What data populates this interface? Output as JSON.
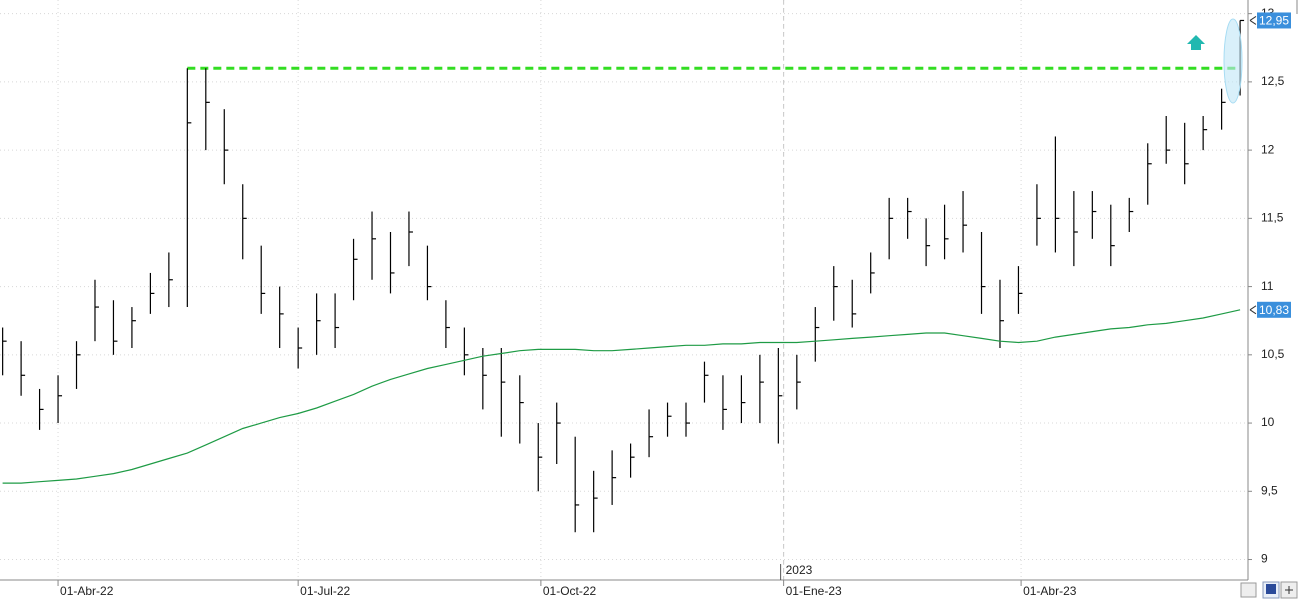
{
  "chart_data": {
    "type": "ohlc",
    "x": [
      "2022-03-11",
      "2022-03-18",
      "2022-03-25",
      "2022-04-01",
      "2022-04-08",
      "2022-04-15",
      "2022-04-22",
      "2022-04-29",
      "2022-05-06",
      "2022-05-13",
      "2022-05-20",
      "2022-05-27",
      "2022-06-03",
      "2022-06-10",
      "2022-06-17",
      "2022-06-24",
      "2022-07-01",
      "2022-07-08",
      "2022-07-15",
      "2022-07-22",
      "2022-07-29",
      "2022-08-05",
      "2022-08-12",
      "2022-08-19",
      "2022-08-26",
      "2022-09-02",
      "2022-09-09",
      "2022-09-16",
      "2022-09-23",
      "2022-09-30",
      "2022-10-07",
      "2022-10-14",
      "2022-10-21",
      "2022-10-28",
      "2022-11-04",
      "2022-11-11",
      "2022-11-18",
      "2022-11-25",
      "2022-12-02",
      "2022-12-09",
      "2022-12-16",
      "2022-12-23",
      "2022-12-30",
      "2023-01-06",
      "2023-01-13",
      "2023-01-20",
      "2023-01-27",
      "2023-02-03",
      "2023-02-10",
      "2023-02-17",
      "2023-02-24",
      "2023-03-03",
      "2023-03-10",
      "2023-03-17",
      "2023-03-24",
      "2023-03-31",
      "2023-04-07",
      "2023-04-14",
      "2023-04-21",
      "2023-04-28",
      "2023-05-05",
      "2023-05-12",
      "2023-05-19",
      "2023-05-26",
      "2023-06-02",
      "2023-06-09",
      "2023-06-16",
      "2023-06-23"
    ],
    "series": [
      {
        "type": "ohlc",
        "color": "#000000",
        "last_value_label": "12,95",
        "high": [
          10.7,
          10.6,
          10.25,
          10.35,
          10.6,
          11.05,
          10.9,
          10.85,
          11.1,
          11.25,
          12.6,
          12.6,
          12.3,
          11.75,
          11.3,
          11.0,
          10.7,
          10.95,
          10.95,
          11.35,
          11.55,
          11.4,
          11.55,
          11.3,
          10.9,
          10.7,
          10.55,
          10.55,
          10.35,
          10.0,
          10.15,
          9.9,
          9.65,
          9.8,
          9.85,
          10.1,
          10.15,
          10.15,
          10.45,
          10.35,
          10.35,
          10.5,
          10.55,
          10.5,
          10.85,
          11.15,
          11.05,
          11.25,
          11.65,
          11.65,
          11.5,
          11.6,
          11.7,
          11.4,
          11.05,
          11.15,
          11.75,
          12.1,
          11.7,
          11.7,
          11.6,
          11.65,
          12.05,
          12.25,
          12.2,
          12.25,
          12.45,
          12.95
        ],
        "low": [
          10.35,
          10.2,
          9.95,
          10.0,
          10.25,
          10.6,
          10.5,
          10.55,
          10.8,
          10.85,
          10.85,
          12.0,
          11.75,
          11.2,
          10.8,
          10.55,
          10.4,
          10.5,
          10.55,
          10.9,
          11.05,
          10.95,
          11.15,
          10.9,
          10.55,
          10.35,
          10.1,
          9.9,
          9.85,
          9.5,
          9.7,
          9.2,
          9.2,
          9.4,
          9.6,
          9.75,
          9.9,
          9.9,
          10.15,
          9.95,
          10.0,
          10.0,
          9.85,
          10.1,
          10.45,
          10.75,
          10.7,
          10.95,
          11.2,
          11.35,
          11.15,
          11.2,
          11.25,
          10.8,
          10.55,
          10.8,
          11.3,
          11.25,
          11.15,
          11.35,
          11.15,
          11.4,
          11.6,
          11.9,
          11.75,
          12.0,
          12.15,
          12.4
        ],
        "close": [
          10.6,
          10.35,
          10.1,
          10.2,
          10.5,
          10.85,
          10.6,
          10.75,
          10.95,
          11.05,
          12.2,
          12.35,
          12.0,
          11.5,
          10.95,
          10.8,
          10.55,
          10.75,
          10.7,
          11.2,
          11.35,
          11.1,
          11.4,
          11.0,
          10.7,
          10.5,
          10.35,
          10.3,
          10.15,
          9.75,
          10.0,
          9.4,
          9.45,
          9.6,
          9.75,
          9.9,
          10.05,
          10.0,
          10.35,
          10.1,
          10.15,
          10.3,
          10.2,
          10.3,
          10.7,
          11.0,
          10.8,
          11.1,
          11.5,
          11.55,
          11.3,
          11.35,
          11.45,
          11.0,
          10.75,
          10.95,
          11.5,
          11.5,
          11.4,
          11.55,
          11.3,
          11.55,
          11.9,
          12.0,
          11.9,
          12.15,
          12.35,
          12.95
        ]
      },
      {
        "type": "line",
        "color": "#1e9b45",
        "last_value_label": "10,83",
        "values": [
          9.56,
          9.56,
          9.57,
          9.58,
          9.59,
          9.61,
          9.63,
          9.66,
          9.7,
          9.74,
          9.78,
          9.84,
          9.9,
          9.96,
          10.0,
          10.04,
          10.07,
          10.11,
          10.16,
          10.21,
          10.27,
          10.32,
          10.36,
          10.4,
          10.43,
          10.46,
          10.49,
          10.51,
          10.53,
          10.54,
          10.54,
          10.54,
          10.53,
          10.53,
          10.54,
          10.55,
          10.56,
          10.57,
          10.57,
          10.58,
          10.58,
          10.59,
          10.59,
          10.59,
          10.6,
          10.61,
          10.62,
          10.63,
          10.64,
          10.65,
          10.66,
          10.66,
          10.64,
          10.62,
          10.6,
          10.59,
          10.6,
          10.63,
          10.65,
          10.67,
          10.69,
          10.7,
          10.72,
          10.73,
          10.75,
          10.77,
          10.8,
          10.83
        ]
      }
    ],
    "resistance": {
      "value": 12.6,
      "x": [
        "2022-05-20",
        "2023-06-23"
      ],
      "color": "#33dd22"
    },
    "xlim": [
      "2022-03-10",
      "2023-06-26"
    ],
    "xticks": [
      {
        "value": "2022-04-01",
        "label": "01-Abr-22"
      },
      {
        "value": "2022-07-01",
        "label": "01-Jul-22"
      },
      {
        "value": "2022-10-01",
        "label": "01-Oct-22"
      },
      {
        "value": "2023-01-01",
        "label": "01-Ene-23"
      },
      {
        "value": "2023-04-01",
        "label": "01-Abr-23"
      }
    ],
    "year_marker": {
      "value": "2023-01-01",
      "label": "2023"
    },
    "ylim": [
      8.85,
      13.1
    ],
    "yticks": [
      9,
      {
        "value": 9.5,
        "label": "9,5"
      },
      10,
      {
        "value": 10.5,
        "label": "10,5"
      },
      11,
      {
        "value": 11.5,
        "label": "11,5"
      },
      12,
      {
        "value": 12.5,
        "label": "12,5"
      },
      13
    ],
    "grid": true
  }
}
